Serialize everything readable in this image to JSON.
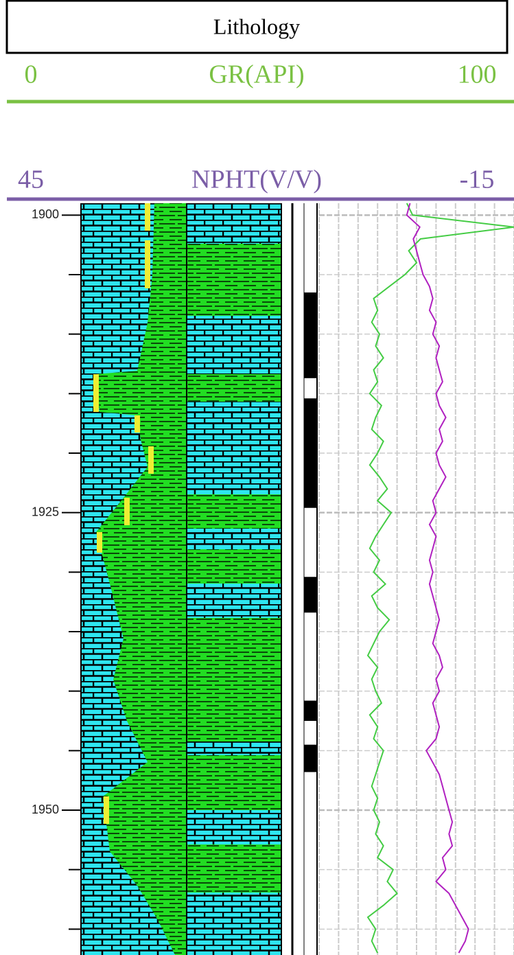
{
  "chart_data": {
    "type": "well-log",
    "title": "Lithology",
    "ylim": [
      1899,
      1962
    ],
    "yticks": [
      1900,
      1925,
      1950
    ],
    "minor_yticks": [
      1905,
      1910,
      1915,
      1920,
      1930,
      1935,
      1940,
      1945,
      1955,
      1960
    ],
    "grid": true,
    "x": [
      1899,
      1900,
      1901,
      1902,
      1903,
      1904,
      1905,
      1906,
      1907,
      1908,
      1909,
      1910,
      1911,
      1912,
      1913,
      1914,
      1915,
      1916,
      1917,
      1918,
      1919,
      1920,
      1921,
      1922,
      1923,
      1924,
      1925,
      1926,
      1927,
      1928,
      1929,
      1930,
      1931,
      1932,
      1933,
      1934,
      1935,
      1936,
      1937,
      1938,
      1939,
      1940,
      1941,
      1942,
      1943,
      1944,
      1945,
      1946,
      1947,
      1948,
      1949,
      1950,
      1951,
      1952,
      1953,
      1954,
      1955,
      1956,
      1957,
      1958,
      1959,
      1960,
      1961,
      1962
    ],
    "series": [
      {
        "name": "GR(API)",
        "color": "#7ac143",
        "line_color": "#44cc44",
        "xlim": [
          0,
          100
        ],
        "values": [
          45,
          48,
          100,
          52,
          46,
          50,
          44,
          36,
          28,
          30,
          27,
          31,
          29,
          33,
          28,
          30,
          26,
          32,
          29,
          27,
          33,
          30,
          26,
          31,
          35,
          30,
          37,
          33,
          29,
          26,
          31,
          28,
          34,
          27,
          30,
          36,
          31,
          28,
          25,
          30,
          27,
          29,
          32,
          26,
          30,
          28,
          33,
          31,
          29,
          27,
          30,
          28,
          31,
          29,
          33,
          30,
          38,
          35,
          40,
          33,
          25,
          29,
          27,
          30
        ]
      },
      {
        "name": "NPHT(V/V)",
        "color": "#7b5ea7",
        "line_color": "#b020c0",
        "xlim": [
          45,
          -15
        ],
        "values": [
          17,
          18,
          14,
          16,
          15,
          14,
          13,
          11,
          10,
          11,
          9,
          10,
          8,
          9,
          8,
          7,
          9,
          8,
          6,
          8,
          7,
          9,
          8,
          6,
          8,
          10,
          9,
          11,
          9,
          10,
          11,
          10,
          11,
          10,
          9,
          8,
          9,
          10,
          8,
          7,
          9,
          8,
          10,
          9,
          8,
          9,
          12,
          10,
          8,
          7,
          6,
          5,
          4,
          5,
          4,
          7,
          6,
          9,
          5,
          3,
          1,
          -1,
          0,
          2
        ]
      }
    ],
    "intervals": [
      [
        1906.5,
        1913.7
      ],
      [
        1915.4,
        1924.6
      ],
      [
        1930.4,
        1933.4
      ],
      [
        1940.8,
        1942.5
      ],
      [
        1944.5,
        1946.8
      ]
    ]
  }
}
